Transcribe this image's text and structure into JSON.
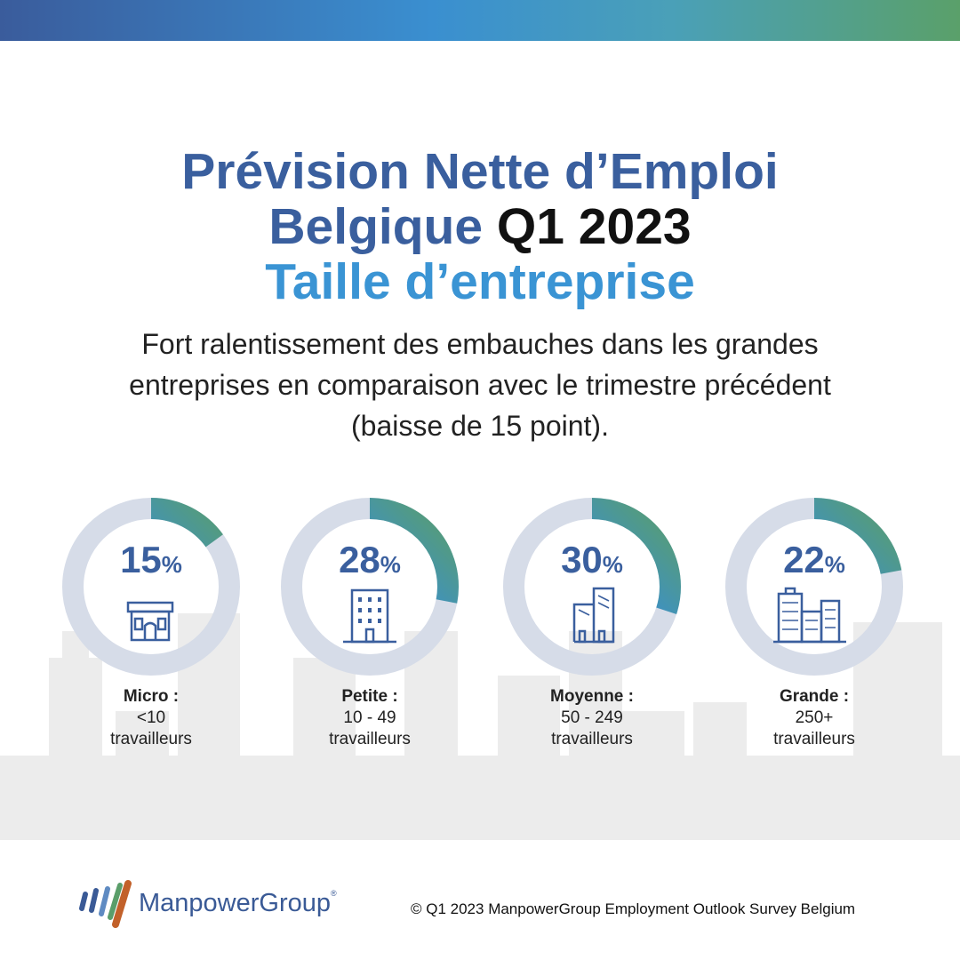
{
  "header": {
    "title_line1": "Prévision Nette d’Emploi",
    "title_line2_a": "Belgique",
    "title_line2_b": "Q1 2023",
    "title_line3": "Taille d’entreprise"
  },
  "subtitle": "Fort ralentissement des embauches dans les grandes entreprises en comparaison avec le trimestre précédent (baisse de 15 point).",
  "chart_data": {
    "type": "donut",
    "unit": "%",
    "categories": [
      "Micro",
      "Petite",
      "Moyenne",
      "Grande"
    ],
    "values": [
      15,
      28,
      30,
      22
    ],
    "ring_track_color": "#d6dce8",
    "gradient_colors": [
      "#3a5f9e",
      "#3a8fd0",
      "#5a9e6a"
    ],
    "items": [
      {
        "value": 15,
        "value_text": "15",
        "unit": "%",
        "category": "Micro :",
        "range": "<10",
        "unit_label": "travailleurs",
        "icon": "shop-icon"
      },
      {
        "value": 28,
        "value_text": "28",
        "unit": "%",
        "category": "Petite :",
        "range": "10 - 49",
        "unit_label": "travailleurs",
        "icon": "office-building-icon"
      },
      {
        "value": 30,
        "value_text": "30",
        "unit": "%",
        "category": "Moyenne :",
        "range": "50 - 249",
        "unit_label": "travailleurs",
        "icon": "twin-buildings-icon"
      },
      {
        "value": 22,
        "value_text": "22",
        "unit": "%",
        "category": "Grande :",
        "range": "250+",
        "unit_label": "travailleurs",
        "icon": "city-buildings-icon"
      }
    ]
  },
  "footer": {
    "brand": "ManpowerGroup",
    "trademark": "®",
    "copyright": "© Q1 2023 ManpowerGroup Employment Outlook Survey Belgium"
  },
  "colors": {
    "title_blue": "#3a5f9e",
    "title_light_blue": "#3a94d4",
    "skyline": "#ececec",
    "logo_blue": "#3a5a96",
    "logo_orange": "#c2612a"
  }
}
